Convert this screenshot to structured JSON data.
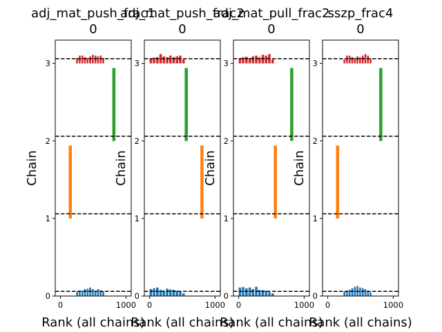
{
  "chart_data": [
    {
      "type": "bar",
      "title_lines": [
        "adj_mat_push_frac1",
        "0"
      ],
      "xlabel": "Rank (all chains)",
      "ylabel": "Chain",
      "xticks": [
        "0",
        "1000"
      ],
      "yticks": [
        "0",
        "1",
        "2",
        "3"
      ],
      "xlim": [
        -80,
        1080
      ],
      "ylim": [
        0,
        3.3
      ],
      "chains": [
        {
          "chain": 0,
          "color": "#1f77b4",
          "kind": "hist",
          "bin_left": 240,
          "bin_width": 40,
          "heights": [
            0.055,
            0.07,
            0.07,
            0.09,
            0.095,
            0.11,
            0.09,
            0.065,
            0.09,
            0.075,
            0.06
          ]
        },
        {
          "chain": 1,
          "color": "#ff7f0e",
          "kind": "bar",
          "x": 150
        },
        {
          "chain": 2,
          "color": "#2ca02c",
          "kind": "bar",
          "x": 815
        },
        {
          "chain": 3,
          "color": "#d62728",
          "kind": "hist",
          "bin_left": 240,
          "bin_width": 40,
          "heights": [
            0.07,
            0.1,
            0.1,
            0.08,
            0.07,
            0.09,
            0.11,
            0.1,
            0.09,
            0.1,
            0.07
          ]
        }
      ]
    },
    {
      "type": "bar",
      "title_lines": [
        "adj_mat_push_frac2",
        "0"
      ],
      "xlabel": "Rank (all chains)",
      "ylabel": "Chain",
      "xticks": [
        "0",
        "1000"
      ],
      "yticks": [
        "0",
        "1",
        "2",
        "3"
      ],
      "xlim": [
        -80,
        1080
      ],
      "ylim": [
        0,
        3.3
      ],
      "chains": [
        {
          "chain": 0,
          "color": "#1f77b4",
          "kind": "hist",
          "bin_left": 0,
          "bin_width": 50,
          "heights": [
            0.09,
            0.1,
            0.11,
            0.08,
            0.07,
            0.095,
            0.085,
            0.08,
            0.07,
            0.06,
            0.035
          ]
        },
        {
          "chain": 1,
          "color": "#ff7f0e",
          "kind": "bar",
          "x": 800
        },
        {
          "chain": 2,
          "color": "#2ca02c",
          "kind": "bar",
          "x": 560
        },
        {
          "chain": 3,
          "color": "#d62728",
          "kind": "hist",
          "bin_left": 0,
          "bin_width": 50,
          "heights": [
            0.06,
            0.075,
            0.08,
            0.12,
            0.09,
            0.08,
            0.1,
            0.08,
            0.09,
            0.1,
            0.05
          ]
        }
      ]
    },
    {
      "type": "bar",
      "title_lines": [
        "adj_mat_pull_frac2",
        "0"
      ],
      "xlabel": "Rank (all chains)",
      "ylabel": "Chain",
      "xticks": [
        "0",
        "1000"
      ],
      "yticks": [
        "0",
        "1",
        "2",
        "3"
      ],
      "xlim": [
        -80,
        1080
      ],
      "ylim": [
        0,
        3.3
      ],
      "chains": [
        {
          "chain": 0,
          "color": "#1f77b4",
          "kind": "hist",
          "bin_left": 0,
          "bin_width": 50,
          "heights": [
            0.11,
            0.115,
            0.1,
            0.11,
            0.09,
            0.12,
            0.08,
            0.075,
            0.07,
            0.05,
            0.035
          ]
        },
        {
          "chain": 1,
          "color": "#ff7f0e",
          "kind": "bar",
          "x": 560
        },
        {
          "chain": 2,
          "color": "#2ca02c",
          "kind": "bar",
          "x": 810
        },
        {
          "chain": 3,
          "color": "#d62728",
          "kind": "hist",
          "bin_left": 0,
          "bin_width": 50,
          "heights": [
            0.065,
            0.08,
            0.085,
            0.07,
            0.09,
            0.1,
            0.08,
            0.11,
            0.1,
            0.12,
            0.05
          ]
        }
      ]
    },
    {
      "type": "bar",
      "title_lines": [
        "sszp_frac4",
        "0"
      ],
      "xlabel": "Rank (all chains)",
      "ylabel": "Chain",
      "xticks": [
        "0",
        "1000"
      ],
      "yticks": [
        "0",
        "1",
        "2",
        "3"
      ],
      "xlim": [
        -80,
        1080
      ],
      "ylim": [
        0,
        3.3
      ],
      "chains": [
        {
          "chain": 0,
          "color": "#1f77b4",
          "kind": "hist",
          "bin_left": 240,
          "bin_width": 40,
          "heights": [
            0.06,
            0.07,
            0.08,
            0.1,
            0.12,
            0.13,
            0.11,
            0.1,
            0.09,
            0.07,
            0.05
          ]
        },
        {
          "chain": 1,
          "color": "#ff7f0e",
          "kind": "bar",
          "x": 150
        },
        {
          "chain": 2,
          "color": "#2ca02c",
          "kind": "bar",
          "x": 810
        },
        {
          "chain": 3,
          "color": "#d62728",
          "kind": "hist",
          "bin_left": 240,
          "bin_width": 40,
          "heights": [
            0.05,
            0.1,
            0.1,
            0.08,
            0.07,
            0.09,
            0.08,
            0.1,
            0.12,
            0.1,
            0.06
          ]
        }
      ]
    }
  ]
}
